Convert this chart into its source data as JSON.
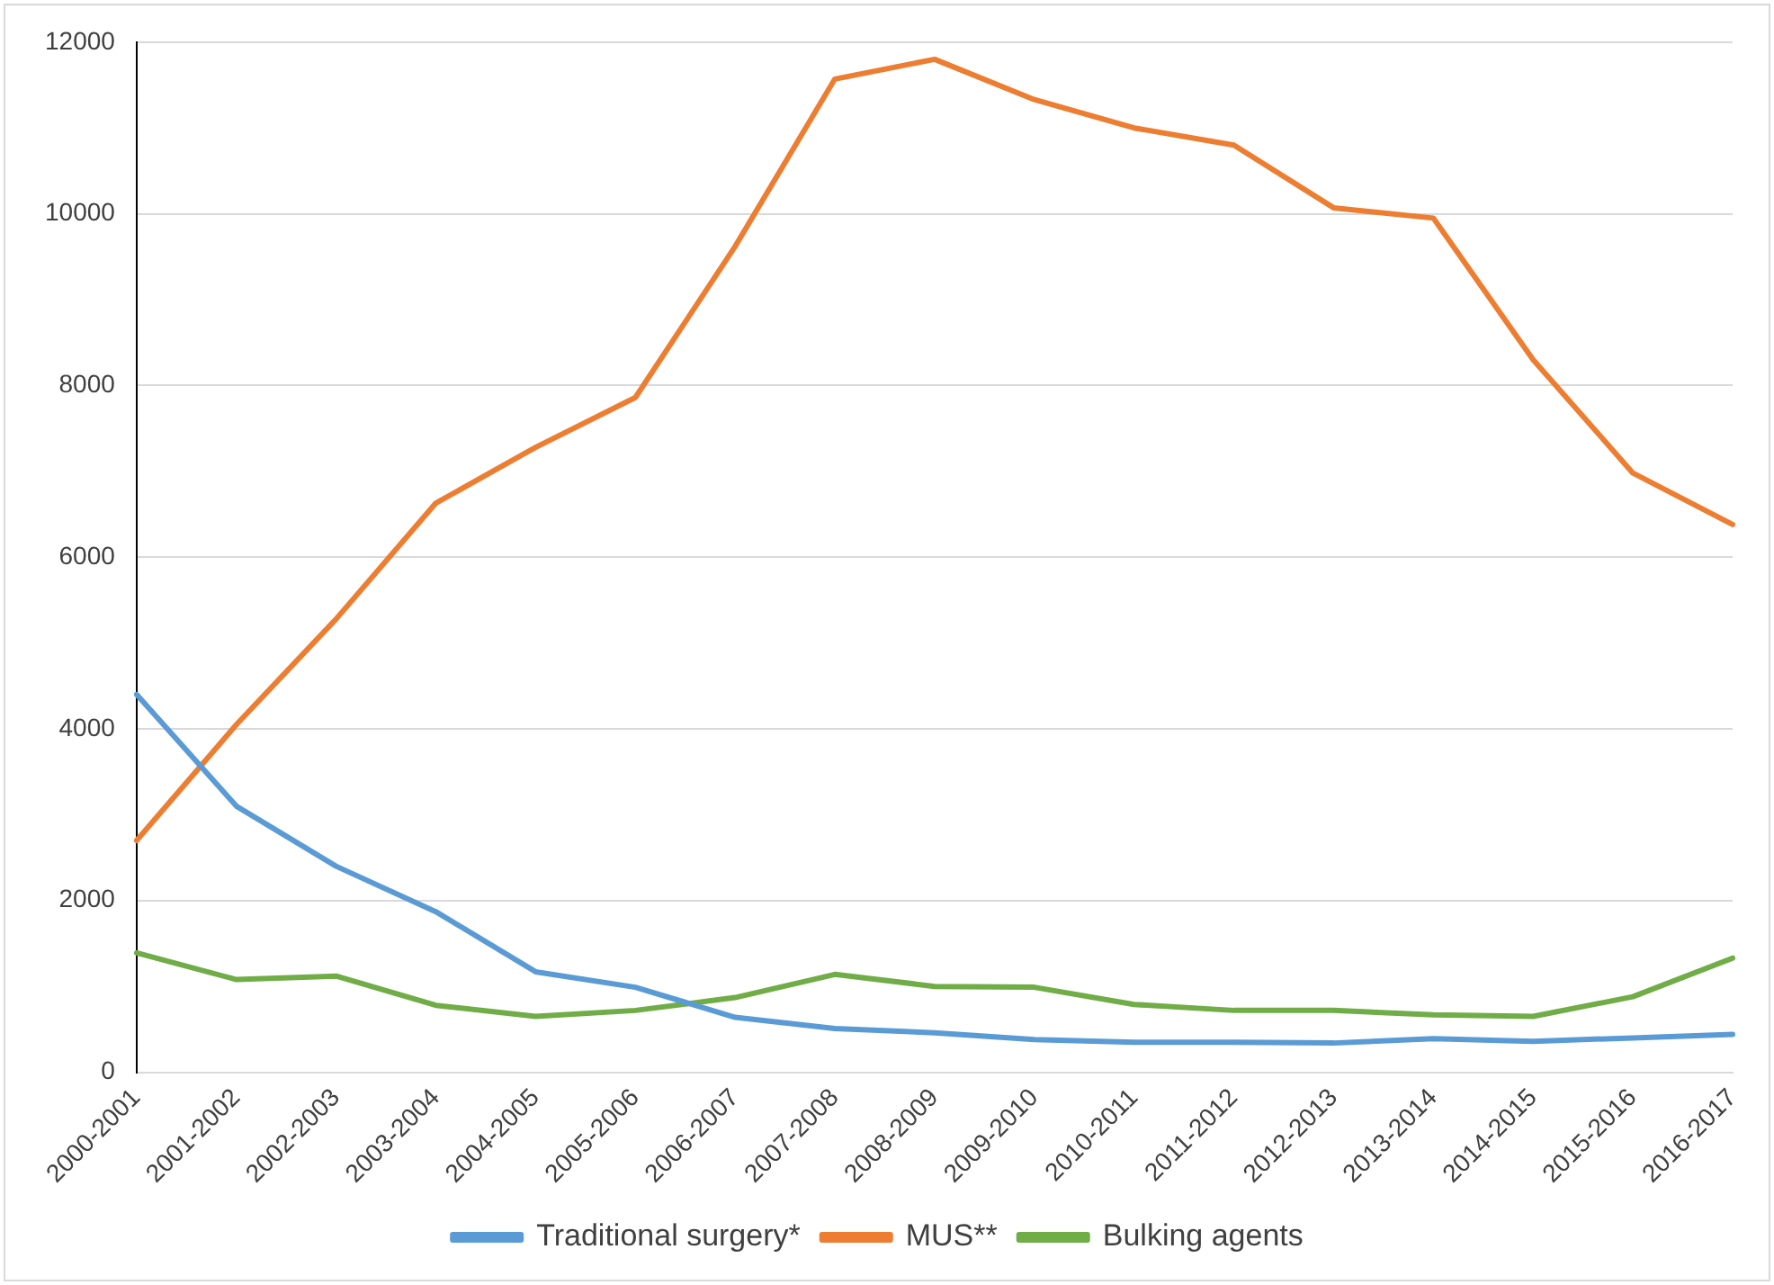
{
  "chart_data": {
    "type": "line",
    "categories": [
      "2000-2001",
      "2001-2002",
      "2002-2003",
      "2003-2004",
      "2004-2005",
      "2005-2006",
      "2006-2007",
      "2007-2008",
      "2008-2009",
      "2009-2010",
      "2010-2011",
      "2011-2012",
      "2012-2013",
      "2013-2014",
      "2014-2015",
      "2015-2016",
      "2016-2017"
    ],
    "series": [
      {
        "name": "Traditional surgery*",
        "color": "#5b9bd5",
        "values": [
          4400,
          3100,
          2400,
          1870,
          1170,
          990,
          640,
          510,
          460,
          380,
          350,
          350,
          340,
          390,
          360,
          400,
          440
        ]
      },
      {
        "name": "MUS**",
        "color": "#ed7d31",
        "values": [
          2700,
          4050,
          5280,
          6630,
          7280,
          7860,
          9620,
          11570,
          11800,
          11330,
          11000,
          10800,
          10070,
          9950,
          8300,
          6980,
          6380
        ]
      },
      {
        "name": "Bulking agents",
        "color": "#70ad47",
        "values": [
          1390,
          1080,
          1120,
          780,
          650,
          720,
          870,
          1140,
          1000,
          990,
          790,
          720,
          720,
          670,
          650,
          880,
          1330
        ]
      }
    ],
    "ylim": [
      0,
      12000
    ],
    "yticks": [
      0,
      2000,
      4000,
      6000,
      8000,
      10000,
      12000
    ],
    "grid": "y",
    "legend": "bottom",
    "marker": "none",
    "line_style": "solid"
  }
}
